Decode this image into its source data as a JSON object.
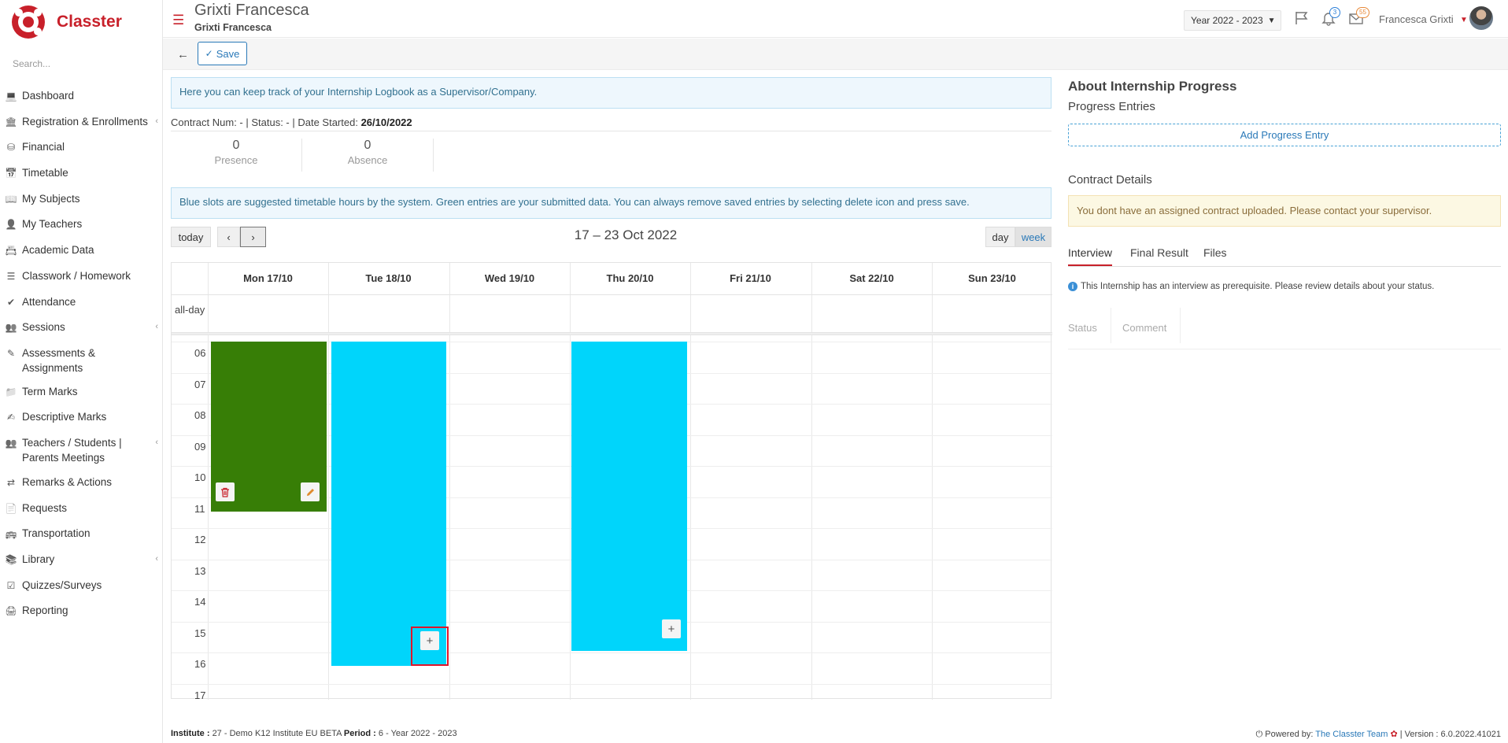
{
  "brand": {
    "name": "Classter"
  },
  "sidebar": {
    "search_placeholder": "Search...",
    "items": [
      {
        "label": "Dashboard",
        "icon": "laptop-icon",
        "has_submenu": false
      },
      {
        "label": "Registration & Enrollments",
        "icon": "bank-icon",
        "has_submenu": true
      },
      {
        "label": "Financial",
        "icon": "coins-icon",
        "has_submenu": false
      },
      {
        "label": "Timetable",
        "icon": "calendar-icon",
        "has_submenu": false
      },
      {
        "label": "My Subjects",
        "icon": "book-icon",
        "has_submenu": false
      },
      {
        "label": "My Teachers",
        "icon": "user-icon",
        "has_submenu": false
      },
      {
        "label": "Academic Data",
        "icon": "user-card-icon",
        "has_submenu": false
      },
      {
        "label": "Classwork / Homework",
        "icon": "list-icon",
        "has_submenu": false
      },
      {
        "label": "Attendance",
        "icon": "user-check-icon",
        "has_submenu": false
      },
      {
        "label": "Sessions",
        "icon": "users-icon",
        "has_submenu": true
      },
      {
        "label": "Assessments & Assignments",
        "icon": "edit-icon",
        "has_submenu": false
      },
      {
        "label": "Term Marks",
        "icon": "folder-icon",
        "has_submenu": false
      },
      {
        "label": "Descriptive Marks",
        "icon": "pencil-square-icon",
        "has_submenu": false
      },
      {
        "label": "Teachers / Students | Parents Meetings",
        "icon": "user-group-icon",
        "has_submenu": true
      },
      {
        "label": "Remarks & Actions",
        "icon": "shuffle-icon",
        "has_submenu": false
      },
      {
        "label": "Requests",
        "icon": "file-icon",
        "has_submenu": false
      },
      {
        "label": "Transportation",
        "icon": "bus-icon",
        "has_submenu": false
      },
      {
        "label": "Library",
        "icon": "books-icon",
        "has_submenu": true
      },
      {
        "label": "Quizzes/Surveys",
        "icon": "checklist-icon",
        "has_submenu": false
      },
      {
        "label": "Reporting",
        "icon": "printer-icon",
        "has_submenu": false
      }
    ]
  },
  "header": {
    "title": "Grixti Francesca",
    "subtitle": "Grixti Francesca",
    "year_select": "Year 2022 - 2023",
    "notifications_count": "3",
    "messages_count": "55",
    "user_name": "Francesca Grixti"
  },
  "toolbar": {
    "save_label": "Save"
  },
  "main": {
    "info_logbook": "Here you can keep track of your Internship Logbook as a Supervisor/Company.",
    "contract_prefix": "Contract Num: -   | Status: - | Date Started:",
    "date_started": "26/10/2022",
    "stats": [
      {
        "value": "0",
        "label": "Presence"
      },
      {
        "value": "0",
        "label": "Absence"
      }
    ],
    "info_slots": "Blue slots are suggested timetable hours by the system. Green entries are your submitted data. You can always remove saved entries by selecting delete icon and press save."
  },
  "calendar": {
    "today_label": "today",
    "prev_icon": "chevron-left-icon",
    "next_icon": "chevron-right-icon",
    "title": "17 – 23 Oct 2022",
    "view_day": "day",
    "view_week": "week",
    "allday_label": "all-day",
    "days": [
      "Mon 17/10",
      "Tue 18/10",
      "Wed 19/10",
      "Thu 20/10",
      "Fri 21/10",
      "Sat 22/10",
      "Sun 23/10"
    ],
    "hours": [
      "06",
      "07",
      "08",
      "09",
      "10",
      "11",
      "12",
      "13",
      "14",
      "15",
      "16",
      "17"
    ],
    "colors": {
      "submitted": "#377e06",
      "suggested": "#00d5fb",
      "highlight": "#e0152b"
    },
    "events": [
      {
        "day": "Mon 17/10",
        "type": "submitted",
        "start": "06:00",
        "end": "11:30",
        "actions": [
          "trash-icon",
          "pencil-icon"
        ]
      },
      {
        "day": "Tue 18/10",
        "type": "suggested",
        "start": "06:00",
        "end": "16:30",
        "actions": [
          "plus-icon"
        ]
      },
      {
        "day": "Thu 20/10",
        "type": "suggested",
        "start": "06:00",
        "end": "16:00",
        "actions": [
          "plus-icon"
        ]
      }
    ]
  },
  "right": {
    "about_title": "About Internship Progress",
    "progress_title": "Progress Entries",
    "add_progress_label": "Add Progress Entry",
    "contract_title": "Contract Details",
    "contract_warning": "You dont have an assigned contract uploaded. Please contact your supervisor.",
    "tabs": [
      "Interview",
      "Final Result",
      "Files"
    ],
    "interview_note": "This Internship has an interview as prerequisite. Please review details about your status.",
    "table_columns": [
      "Status",
      "Comment"
    ]
  },
  "footer": {
    "institute_label": "Institute :",
    "institute_value": "27 - Demo K12 Institute EU BETA",
    "period_label": "Period :",
    "period_value": "6 - Year 2022 - 2023",
    "powered_by": "Powered by:",
    "team_link": "The Classter Team",
    "version": "| Version : 6.0.2022.41021"
  }
}
